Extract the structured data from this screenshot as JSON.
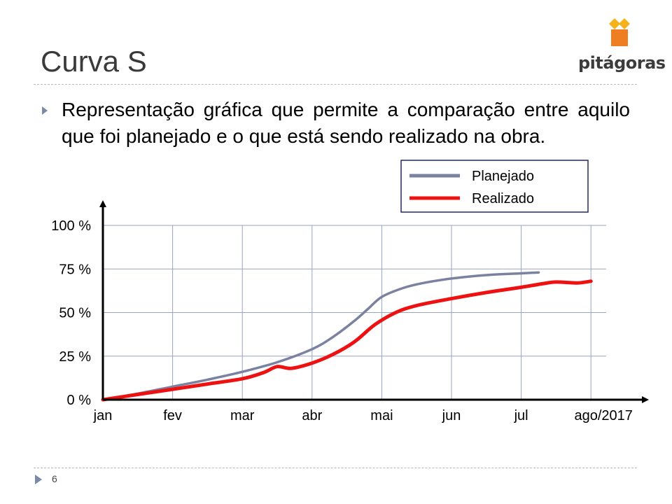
{
  "slide": {
    "title": "Curva S",
    "bullet": "Representação gráfica que permite a comparação entre aquilo que foi planejado e o que está sendo realizado na obra.",
    "page_number": "6",
    "logo_text": "pitágoras"
  },
  "colors": {
    "planned": "#7a82a0",
    "actual": "#ee1111",
    "grid": "#9aa3c2",
    "logo_yellow": "#f6b21b",
    "logo_orange": "#ef7d22",
    "bullet": "#7d8aa6"
  },
  "chart_data": {
    "type": "line",
    "categories": [
      "jan",
      "fev",
      "mar",
      "abr",
      "mai",
      "jun",
      "jul",
      "ago/2017"
    ],
    "y_ticks": [
      "0 %",
      "25 %",
      "50 %",
      "75 %",
      "100 %"
    ],
    "ylim": [
      0,
      100
    ],
    "xlim": [
      0,
      7
    ],
    "grid": true,
    "legend_position": "top-right",
    "series": [
      {
        "name": "Planejado",
        "color": "#7a82a0",
        "points": [
          [
            0,
            0
          ],
          [
            0.5,
            3.5
          ],
          [
            1,
            7.5
          ],
          [
            1.5,
            11.5
          ],
          [
            2,
            16
          ],
          [
            2.5,
            21.5
          ],
          [
            3,
            29
          ],
          [
            3.3,
            36
          ],
          [
            3.6,
            45
          ],
          [
            3.8,
            52
          ],
          [
            4,
            59
          ],
          [
            4.3,
            64
          ],
          [
            4.6,
            67
          ],
          [
            5,
            69.5
          ],
          [
            5.5,
            71.5
          ],
          [
            6,
            72.5
          ],
          [
            6.25,
            73
          ]
        ]
      },
      {
        "name": "Realizado",
        "color": "#ee1111",
        "points": [
          [
            0,
            0
          ],
          [
            0.5,
            3
          ],
          [
            1,
            6
          ],
          [
            1.5,
            9
          ],
          [
            2,
            12
          ],
          [
            2.3,
            15.5
          ],
          [
            2.5,
            19
          ],
          [
            2.7,
            18
          ],
          [
            3,
            21
          ],
          [
            3.3,
            26
          ],
          [
            3.6,
            33
          ],
          [
            3.9,
            43
          ],
          [
            4.2,
            50
          ],
          [
            4.5,
            54
          ],
          [
            5,
            58
          ],
          [
            5.5,
            61.5
          ],
          [
            6,
            64.5
          ],
          [
            6.3,
            66.5
          ],
          [
            6.5,
            67.5
          ],
          [
            6.8,
            67
          ],
          [
            7,
            68
          ]
        ]
      }
    ]
  }
}
